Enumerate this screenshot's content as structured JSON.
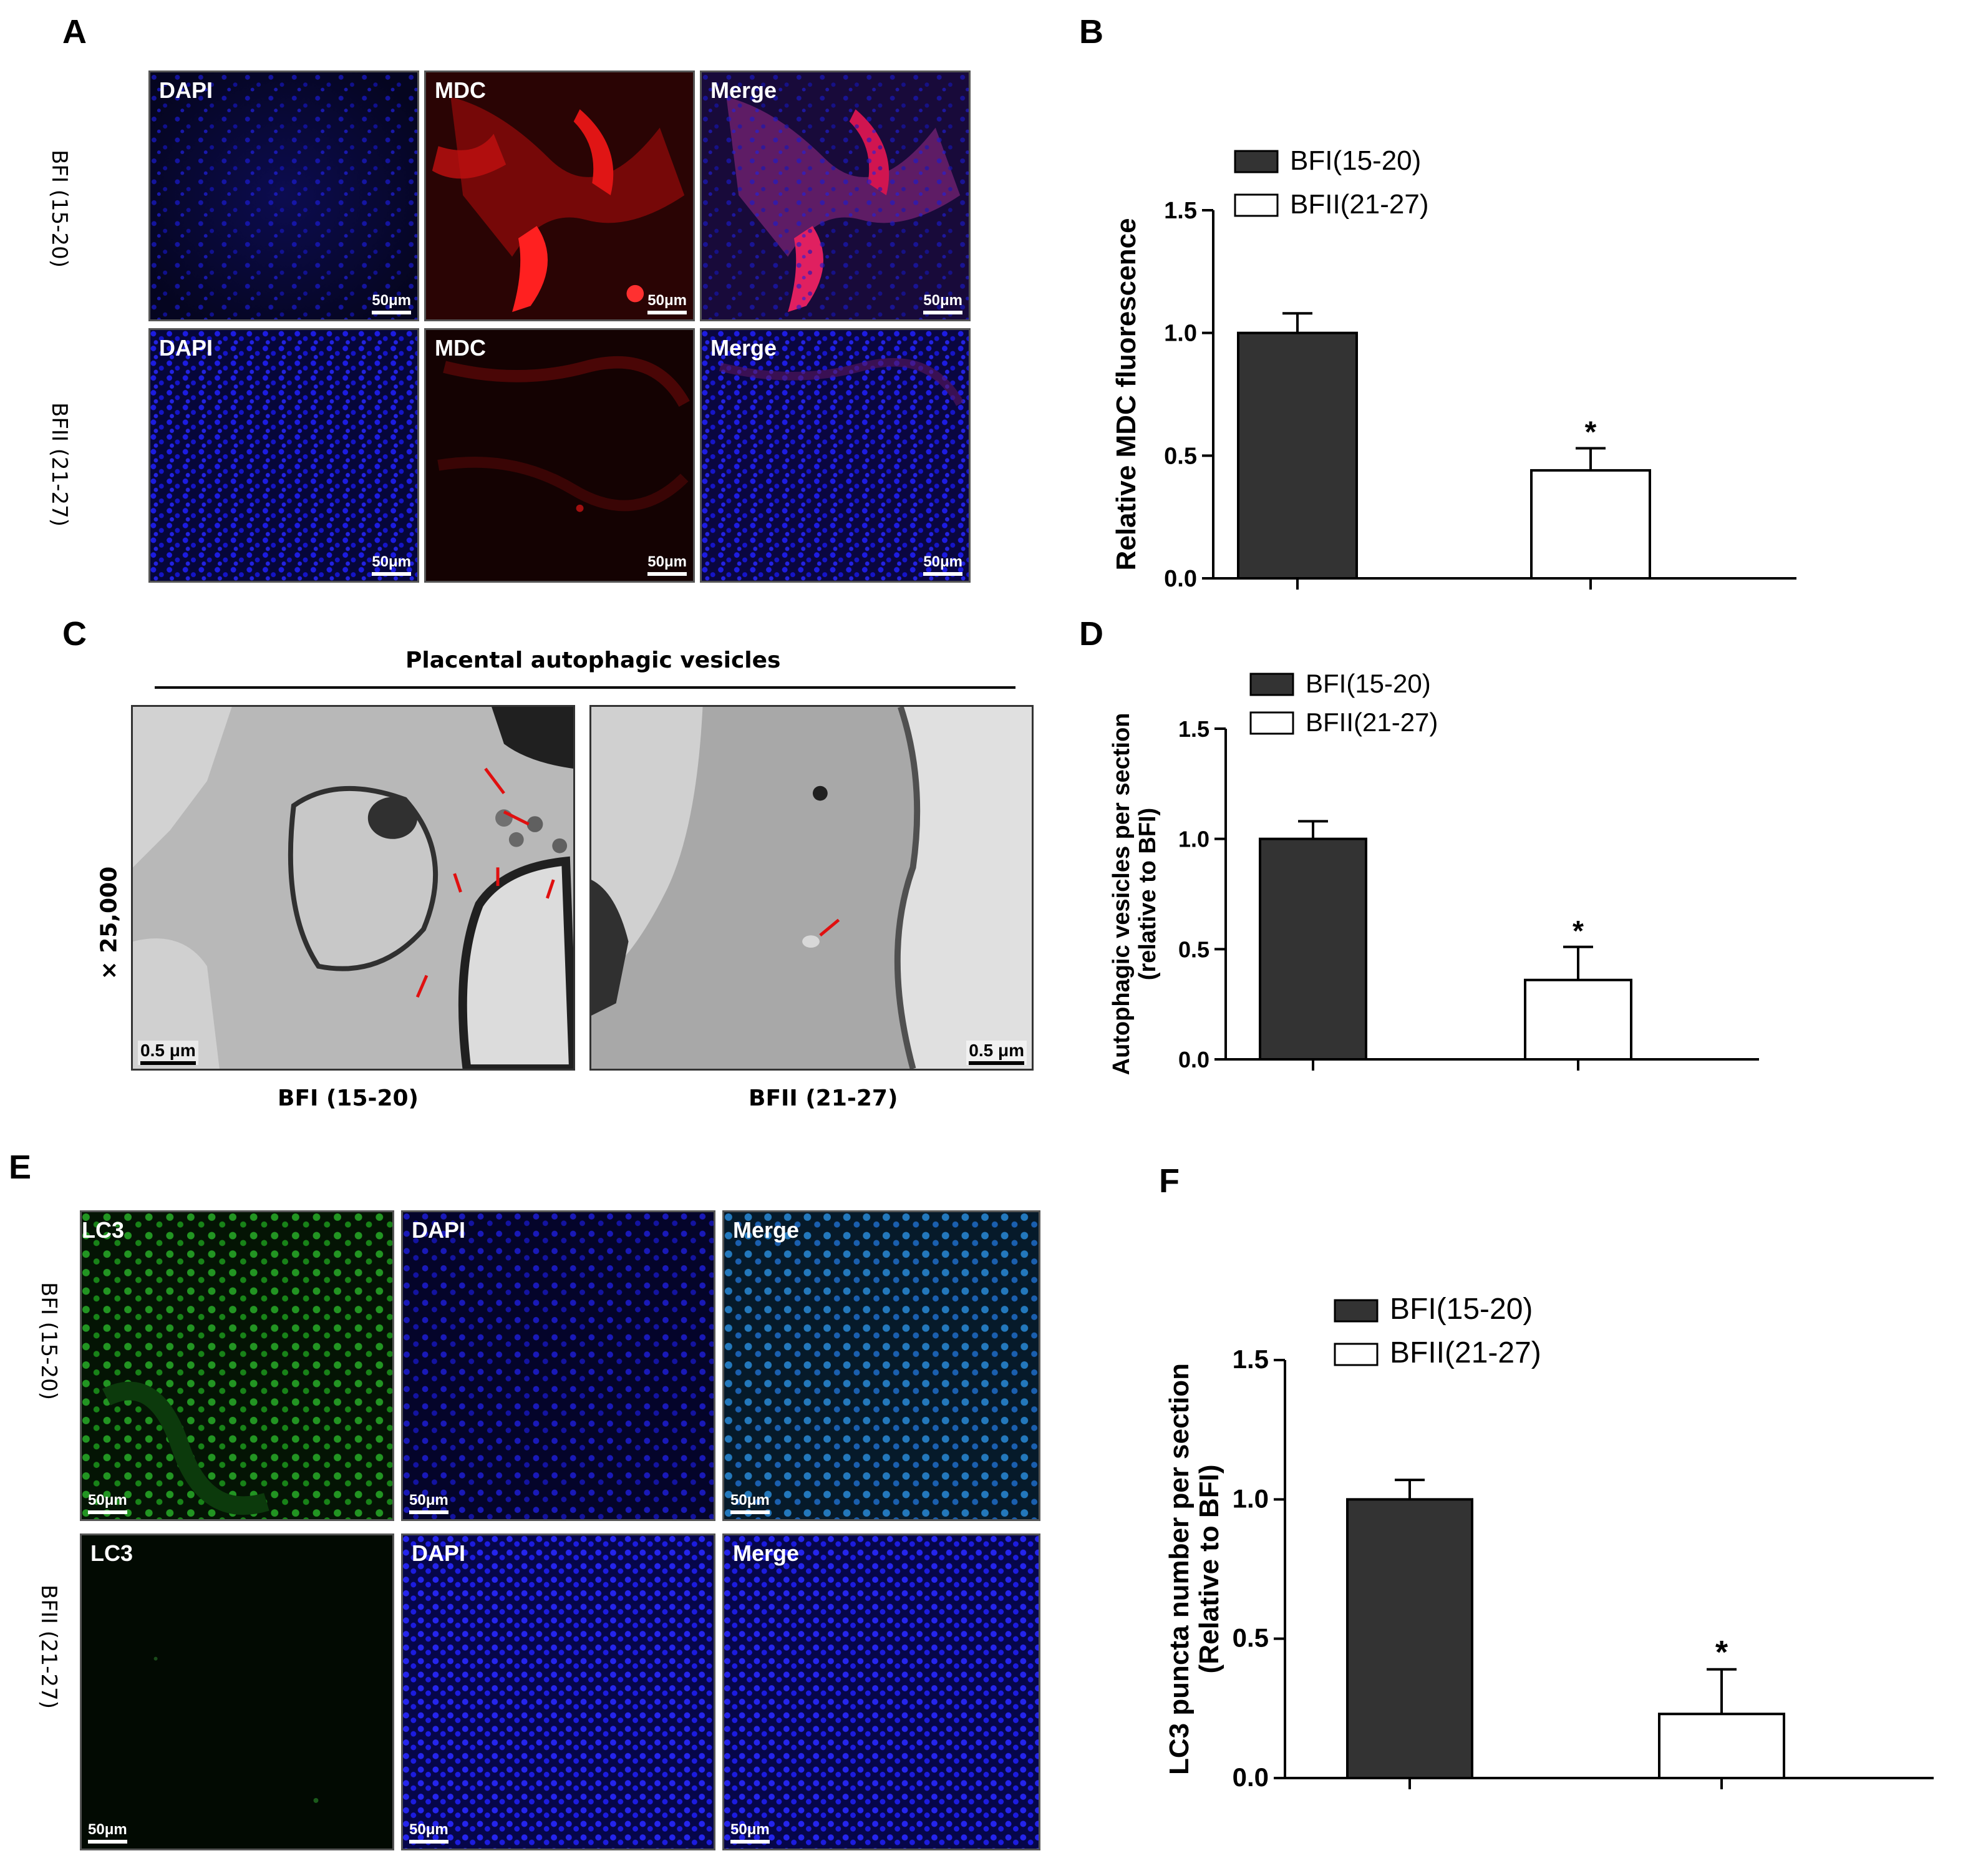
{
  "panel_letters": {
    "A": "A",
    "B": "B",
    "C": "C",
    "D": "D",
    "E": "E",
    "F": "F"
  },
  "panelA": {
    "rows": [
      "BFI (15-20)",
      "BFII (21-27)"
    ],
    "columns": [
      "DAPI",
      "MDC",
      "Merge"
    ],
    "scale": "50μm"
  },
  "panelC": {
    "title": "Placental autophagic vesicles",
    "magnification": "× 25,000",
    "captions": [
      "BFI (15-20)",
      "BFII (21-27)"
    ],
    "scale": "0.5 μm"
  },
  "panelE": {
    "rows": [
      "BFI (15-20)",
      "BFII (21-27)"
    ],
    "columns": [
      "LC3",
      "DAPI",
      "Merge"
    ],
    "scale": "50μm"
  },
  "colors": {
    "bfi": "#333333",
    "bfii": "#ffffff",
    "dapi": "#1010c8",
    "mdc": "#e01010",
    "lc3": "#22b022"
  },
  "chart_data": [
    {
      "id": "B",
      "type": "bar",
      "ylabel": "Relative MDC fluorescence",
      "ylim": [
        0,
        1.5
      ],
      "yticks": [
        "0.0",
        "0.5",
        "1.0",
        "1.5"
      ],
      "series": [
        {
          "name": "BFI(15-20)",
          "value": 1.0,
          "error": 0.08,
          "sig": ""
        },
        {
          "name": "BFII(21-27)",
          "value": 0.44,
          "error": 0.09,
          "sig": "*"
        }
      ]
    },
    {
      "id": "D",
      "type": "bar",
      "ylabel": "Autophagic vesicles per section",
      "ylabel2": "(relative to BFI)",
      "ylim": [
        0,
        1.5
      ],
      "yticks": [
        "0.0",
        "0.5",
        "1.0",
        "1.5"
      ],
      "series": [
        {
          "name": "BFI(15-20)",
          "value": 1.0,
          "error": 0.08,
          "sig": ""
        },
        {
          "name": "BFII(21-27)",
          "value": 0.36,
          "error": 0.15,
          "sig": "*"
        }
      ]
    },
    {
      "id": "F",
      "type": "bar",
      "ylabel": "LC3 puncta number per section",
      "ylabel2": "(Relative to BFI)",
      "ylim": [
        0,
        1.5
      ],
      "yticks": [
        "0.0",
        "0.5",
        "1.0",
        "1.5"
      ],
      "series": [
        {
          "name": "BFI(15-20)",
          "value": 1.0,
          "error": 0.07,
          "sig": ""
        },
        {
          "name": "BFII(21-27)",
          "value": 0.23,
          "error": 0.16,
          "sig": "*"
        }
      ]
    }
  ]
}
